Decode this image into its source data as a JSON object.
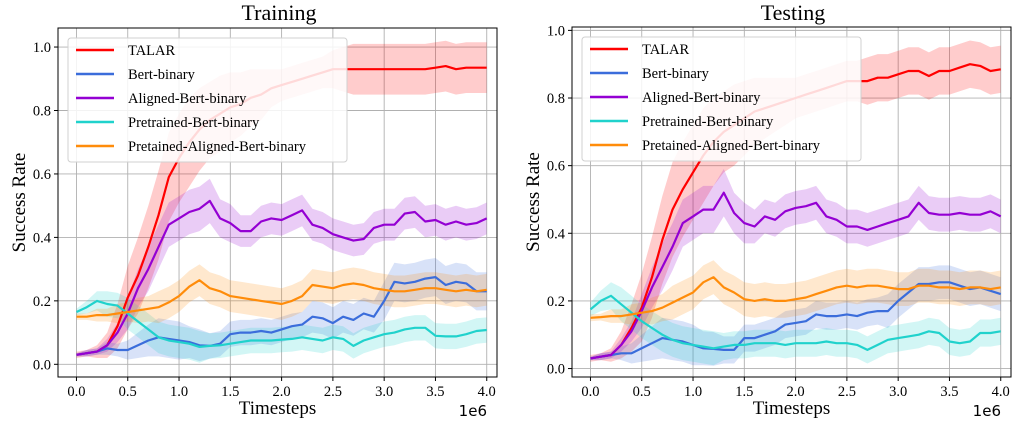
{
  "chart_data": [
    {
      "type": "line",
      "title": "Training",
      "xlabel": "Timesteps",
      "ylabel": "Success Rate",
      "x_offset_label": "1e6",
      "xlim": [
        -0.18,
        4.1
      ],
      "ylim": [
        -0.04,
        1.06
      ],
      "xticks": [
        0.0,
        0.5,
        1.0,
        1.5,
        2.0,
        2.5,
        3.0,
        3.5,
        4.0
      ],
      "xtick_labels": [
        "0.0",
        "0.5",
        "1.0",
        "1.5",
        "2.0",
        "2.5",
        "3.0",
        "3.5",
        "4.0"
      ],
      "yticks": [
        0.0,
        0.2,
        0.4,
        0.6,
        0.8,
        1.0
      ],
      "ytick_labels": [
        "0.0",
        "0.2",
        "0.4",
        "0.6",
        "0.8",
        "1.0"
      ],
      "grid": true,
      "legend_position": "top-left",
      "x": [
        0.0,
        0.1,
        0.2,
        0.3,
        0.4,
        0.5,
        0.6,
        0.7,
        0.8,
        0.9,
        1.0,
        1.1,
        1.2,
        1.3,
        1.4,
        1.5,
        1.6,
        1.7,
        1.8,
        1.9,
        2.0,
        2.1,
        2.2,
        2.3,
        2.4,
        2.5,
        2.6,
        2.7,
        2.8,
        2.9,
        3.0,
        3.1,
        3.2,
        3.3,
        3.4,
        3.5,
        3.6,
        3.7,
        3.8,
        3.9,
        4.0
      ],
      "series": [
        {
          "name": "TALAR",
          "color": "#ff0000",
          "values": [
            0.03,
            0.035,
            0.04,
            0.06,
            0.12,
            0.21,
            0.28,
            0.37,
            0.47,
            0.59,
            0.65,
            0.7,
            0.74,
            0.77,
            0.79,
            0.81,
            0.82,
            0.84,
            0.85,
            0.87,
            0.88,
            0.89,
            0.9,
            0.91,
            0.92,
            0.93,
            0.93,
            0.93,
            0.93,
            0.93,
            0.93,
            0.93,
            0.93,
            0.93,
            0.93,
            0.935,
            0.94,
            0.93,
            0.935,
            0.935,
            0.935
          ],
          "band": [
            0.01,
            0.01,
            0.02,
            0.04,
            0.07,
            0.1,
            0.12,
            0.13,
            0.14,
            0.14,
            0.14,
            0.14,
            0.13,
            0.12,
            0.12,
            0.11,
            0.1,
            0.09,
            0.08,
            0.06,
            0.05,
            0.05,
            0.05,
            0.05,
            0.05,
            0.06,
            0.07,
            0.08,
            0.08,
            0.08,
            0.08,
            0.08,
            0.08,
            0.08,
            0.08,
            0.08,
            0.08,
            0.08,
            0.08,
            0.08,
            0.08
          ]
        },
        {
          "name": "Bert-binary",
          "color": "#3b6ddb",
          "values": [
            0.03,
            0.035,
            0.04,
            0.05,
            0.045,
            0.045,
            0.06,
            0.075,
            0.085,
            0.08,
            0.075,
            0.07,
            0.06,
            0.058,
            0.065,
            0.095,
            0.1,
            0.1,
            0.105,
            0.1,
            0.11,
            0.12,
            0.125,
            0.15,
            0.145,
            0.13,
            0.15,
            0.14,
            0.16,
            0.15,
            0.2,
            0.26,
            0.255,
            0.26,
            0.27,
            0.275,
            0.25,
            0.26,
            0.255,
            0.23,
            0.23
          ],
          "band": [
            0.005,
            0.01,
            0.01,
            0.02,
            0.02,
            0.03,
            0.04,
            0.05,
            0.06,
            0.06,
            0.06,
            0.05,
            0.05,
            0.04,
            0.04,
            0.04,
            0.04,
            0.04,
            0.04,
            0.04,
            0.04,
            0.04,
            0.04,
            0.05,
            0.05,
            0.05,
            0.05,
            0.05,
            0.05,
            0.05,
            0.06,
            0.06,
            0.06,
            0.06,
            0.06,
            0.06,
            0.06,
            0.06,
            0.06,
            0.06,
            0.06
          ]
        },
        {
          "name": "Aligned-Bert-binary",
          "color": "#9400d3",
          "values": [
            0.03,
            0.035,
            0.04,
            0.06,
            0.1,
            0.16,
            0.24,
            0.3,
            0.37,
            0.44,
            0.46,
            0.48,
            0.49,
            0.515,
            0.46,
            0.445,
            0.42,
            0.42,
            0.45,
            0.46,
            0.455,
            0.47,
            0.485,
            0.44,
            0.43,
            0.41,
            0.4,
            0.39,
            0.395,
            0.43,
            0.44,
            0.44,
            0.475,
            0.48,
            0.45,
            0.455,
            0.44,
            0.45,
            0.44,
            0.445,
            0.46
          ],
          "band": [
            0.005,
            0.01,
            0.01,
            0.02,
            0.03,
            0.05,
            0.06,
            0.07,
            0.07,
            0.07,
            0.07,
            0.07,
            0.07,
            0.07,
            0.06,
            0.06,
            0.05,
            0.05,
            0.05,
            0.05,
            0.05,
            0.05,
            0.05,
            0.05,
            0.05,
            0.05,
            0.05,
            0.05,
            0.05,
            0.05,
            0.05,
            0.05,
            0.05,
            0.05,
            0.05,
            0.05,
            0.05,
            0.05,
            0.05,
            0.05,
            0.05
          ]
        },
        {
          "name": "Pretrained-Bert-binary",
          "color": "#20d2cc",
          "values": [
            0.165,
            0.18,
            0.2,
            0.19,
            0.185,
            0.16,
            0.135,
            0.11,
            0.085,
            0.075,
            0.07,
            0.065,
            0.055,
            0.058,
            0.06,
            0.065,
            0.07,
            0.075,
            0.075,
            0.075,
            0.078,
            0.08,
            0.085,
            0.08,
            0.075,
            0.085,
            0.08,
            0.058,
            0.075,
            0.085,
            0.095,
            0.1,
            0.11,
            0.115,
            0.115,
            0.09,
            0.088,
            0.088,
            0.095,
            0.105,
            0.108
          ],
          "band": [
            0.01,
            0.02,
            0.03,
            0.04,
            0.04,
            0.05,
            0.05,
            0.05,
            0.05,
            0.05,
            0.05,
            0.05,
            0.05,
            0.04,
            0.04,
            0.04,
            0.04,
            0.04,
            0.04,
            0.04,
            0.04,
            0.04,
            0.04,
            0.04,
            0.04,
            0.04,
            0.04,
            0.04,
            0.04,
            0.04,
            0.04,
            0.04,
            0.04,
            0.04,
            0.04,
            0.04,
            0.04,
            0.04,
            0.04,
            0.04,
            0.04
          ]
        },
        {
          "name": "Pretained-Aligned-Bert-binary",
          "color": "#ff8c0a",
          "values": [
            0.15,
            0.15,
            0.155,
            0.155,
            0.16,
            0.165,
            0.17,
            0.175,
            0.18,
            0.195,
            0.215,
            0.245,
            0.265,
            0.24,
            0.23,
            0.215,
            0.21,
            0.205,
            0.2,
            0.195,
            0.19,
            0.2,
            0.215,
            0.25,
            0.245,
            0.24,
            0.25,
            0.255,
            0.25,
            0.24,
            0.235,
            0.23,
            0.23,
            0.235,
            0.24,
            0.24,
            0.235,
            0.23,
            0.235,
            0.23,
            0.235
          ],
          "band": [
            0.01,
            0.01,
            0.02,
            0.02,
            0.03,
            0.03,
            0.04,
            0.04,
            0.05,
            0.05,
            0.05,
            0.05,
            0.05,
            0.05,
            0.05,
            0.05,
            0.05,
            0.05,
            0.05,
            0.05,
            0.05,
            0.05,
            0.05,
            0.05,
            0.05,
            0.05,
            0.05,
            0.05,
            0.05,
            0.05,
            0.05,
            0.05,
            0.05,
            0.05,
            0.05,
            0.05,
            0.05,
            0.05,
            0.05,
            0.05,
            0.05
          ]
        }
      ]
    },
    {
      "type": "line",
      "title": "Testing",
      "xlabel": "Timesteps",
      "ylabel": "Success Rate",
      "x_offset_label": "1e6",
      "xlim": [
        -0.18,
        4.1
      ],
      "ylim": [
        -0.025,
        1.01
      ],
      "xticks": [
        0.0,
        0.5,
        1.0,
        1.5,
        2.0,
        2.5,
        3.0,
        3.5,
        4.0
      ],
      "xtick_labels": [
        "0.0",
        "0.5",
        "1.0",
        "1.5",
        "2.0",
        "2.5",
        "3.0",
        "3.5",
        "4.0"
      ],
      "yticks": [
        0.0,
        0.2,
        0.4,
        0.6,
        0.8,
        1.0
      ],
      "ytick_labels": [
        "0.0",
        "0.2",
        "0.4",
        "0.6",
        "0.8",
        "1.0"
      ],
      "grid": true,
      "legend_position": "top-left",
      "x": [
        0.0,
        0.1,
        0.2,
        0.3,
        0.4,
        0.5,
        0.6,
        0.7,
        0.8,
        0.9,
        1.0,
        1.1,
        1.2,
        1.3,
        1.4,
        1.5,
        1.6,
        1.7,
        1.8,
        1.9,
        2.0,
        2.1,
        2.2,
        2.3,
        2.4,
        2.5,
        2.6,
        2.7,
        2.8,
        2.9,
        3.0,
        3.1,
        3.2,
        3.3,
        3.4,
        3.5,
        3.6,
        3.7,
        3.8,
        3.9,
        4.0
      ],
      "series": [
        {
          "name": "TALAR",
          "color": "#ff0000",
          "values": [
            0.03,
            0.035,
            0.04,
            0.07,
            0.12,
            0.18,
            0.27,
            0.38,
            0.47,
            0.53,
            0.58,
            0.63,
            0.67,
            0.7,
            0.72,
            0.74,
            0.76,
            0.77,
            0.78,
            0.79,
            0.8,
            0.81,
            0.82,
            0.83,
            0.84,
            0.85,
            0.85,
            0.85,
            0.86,
            0.86,
            0.87,
            0.88,
            0.88,
            0.865,
            0.88,
            0.88,
            0.89,
            0.9,
            0.895,
            0.88,
            0.885
          ],
          "band": [
            0.01,
            0.01,
            0.02,
            0.04,
            0.07,
            0.1,
            0.12,
            0.13,
            0.14,
            0.14,
            0.14,
            0.14,
            0.13,
            0.12,
            0.12,
            0.11,
            0.1,
            0.09,
            0.08,
            0.07,
            0.06,
            0.06,
            0.06,
            0.06,
            0.06,
            0.06,
            0.06,
            0.07,
            0.07,
            0.07,
            0.07,
            0.07,
            0.07,
            0.07,
            0.07,
            0.07,
            0.07,
            0.07,
            0.07,
            0.07,
            0.07
          ]
        },
        {
          "name": "Bert-binary",
          "color": "#3b6ddb",
          "values": [
            0.03,
            0.035,
            0.04,
            0.045,
            0.045,
            0.06,
            0.075,
            0.09,
            0.085,
            0.08,
            0.07,
            0.06,
            0.058,
            0.055,
            0.055,
            0.09,
            0.09,
            0.1,
            0.11,
            0.13,
            0.135,
            0.14,
            0.16,
            0.155,
            0.155,
            0.16,
            0.155,
            0.165,
            0.17,
            0.17,
            0.2,
            0.225,
            0.25,
            0.25,
            0.255,
            0.255,
            0.245,
            0.235,
            0.24,
            0.23,
            0.22
          ],
          "band": [
            0.005,
            0.01,
            0.01,
            0.02,
            0.03,
            0.04,
            0.05,
            0.06,
            0.06,
            0.06,
            0.06,
            0.05,
            0.05,
            0.04,
            0.04,
            0.04,
            0.04,
            0.04,
            0.04,
            0.04,
            0.04,
            0.04,
            0.04,
            0.04,
            0.04,
            0.04,
            0.04,
            0.04,
            0.04,
            0.05,
            0.05,
            0.05,
            0.05,
            0.05,
            0.05,
            0.05,
            0.05,
            0.05,
            0.05,
            0.05,
            0.05
          ]
        },
        {
          "name": "Aligned-Bert-binary",
          "color": "#9400d3",
          "values": [
            0.03,
            0.035,
            0.04,
            0.07,
            0.11,
            0.17,
            0.24,
            0.3,
            0.36,
            0.43,
            0.45,
            0.47,
            0.47,
            0.52,
            0.46,
            0.43,
            0.42,
            0.45,
            0.44,
            0.465,
            0.475,
            0.48,
            0.49,
            0.45,
            0.44,
            0.42,
            0.42,
            0.41,
            0.42,
            0.43,
            0.44,
            0.45,
            0.49,
            0.46,
            0.455,
            0.455,
            0.46,
            0.455,
            0.455,
            0.465,
            0.45
          ],
          "band": [
            0.005,
            0.01,
            0.01,
            0.02,
            0.03,
            0.05,
            0.06,
            0.07,
            0.07,
            0.07,
            0.07,
            0.07,
            0.07,
            0.07,
            0.06,
            0.06,
            0.05,
            0.05,
            0.05,
            0.05,
            0.05,
            0.05,
            0.05,
            0.05,
            0.05,
            0.05,
            0.05,
            0.05,
            0.05,
            0.05,
            0.05,
            0.05,
            0.05,
            0.05,
            0.05,
            0.05,
            0.05,
            0.05,
            0.05,
            0.05,
            0.05
          ]
        },
        {
          "name": "Pretrained-Bert-binary",
          "color": "#20d2cc",
          "values": [
            0.175,
            0.2,
            0.215,
            0.19,
            0.165,
            0.14,
            0.12,
            0.1,
            0.085,
            0.075,
            0.07,
            0.065,
            0.06,
            0.065,
            0.07,
            0.07,
            0.075,
            0.075,
            0.075,
            0.07,
            0.075,
            0.075,
            0.075,
            0.08,
            0.075,
            0.075,
            0.07,
            0.055,
            0.07,
            0.085,
            0.09,
            0.095,
            0.1,
            0.11,
            0.105,
            0.08,
            0.075,
            0.08,
            0.105,
            0.105,
            0.11
          ],
          "band": [
            0.02,
            0.03,
            0.04,
            0.05,
            0.05,
            0.05,
            0.05,
            0.05,
            0.05,
            0.05,
            0.05,
            0.05,
            0.05,
            0.04,
            0.04,
            0.04,
            0.04,
            0.04,
            0.04,
            0.04,
            0.04,
            0.04,
            0.04,
            0.04,
            0.04,
            0.04,
            0.04,
            0.04,
            0.04,
            0.04,
            0.04,
            0.04,
            0.04,
            0.04,
            0.04,
            0.04,
            0.04,
            0.04,
            0.04,
            0.04,
            0.04
          ]
        },
        {
          "name": "Pretained-Aligned-Bert-binary",
          "color": "#ff8c0a",
          "values": [
            0.15,
            0.152,
            0.155,
            0.155,
            0.16,
            0.165,
            0.17,
            0.18,
            0.195,
            0.21,
            0.225,
            0.255,
            0.27,
            0.24,
            0.225,
            0.205,
            0.2,
            0.205,
            0.2,
            0.2,
            0.205,
            0.21,
            0.22,
            0.23,
            0.24,
            0.245,
            0.24,
            0.245,
            0.245,
            0.24,
            0.235,
            0.235,
            0.245,
            0.245,
            0.24,
            0.24,
            0.235,
            0.24,
            0.24,
            0.235,
            0.24
          ],
          "band": [
            0.01,
            0.01,
            0.02,
            0.02,
            0.03,
            0.03,
            0.04,
            0.04,
            0.05,
            0.05,
            0.05,
            0.05,
            0.05,
            0.05,
            0.05,
            0.05,
            0.05,
            0.05,
            0.05,
            0.05,
            0.05,
            0.05,
            0.05,
            0.05,
            0.05,
            0.05,
            0.05,
            0.05,
            0.05,
            0.05,
            0.05,
            0.05,
            0.05,
            0.05,
            0.05,
            0.05,
            0.05,
            0.05,
            0.05,
            0.05,
            0.05
          ]
        }
      ]
    }
  ]
}
